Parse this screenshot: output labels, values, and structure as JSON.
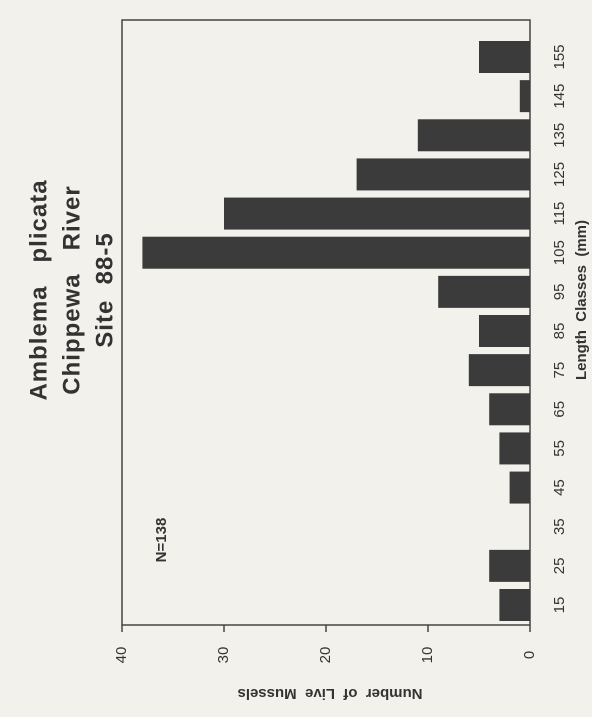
{
  "chart_data": {
    "type": "bar",
    "title_lines": [
      "Amblema   plicata",
      "Chippewa   River",
      "Site  88-5"
    ],
    "annotation": "N=138",
    "xlabel": "Length  Classes  (mm)",
    "ylabel": "Number  of  Live  Mussels",
    "categories": [
      "15",
      "25",
      "35",
      "45",
      "55",
      "65",
      "75",
      "85",
      "95",
      "105",
      "115",
      "125",
      "135",
      "145",
      "155"
    ],
    "values": [
      3,
      4,
      0,
      2,
      3,
      4,
      6,
      5,
      9,
      38,
      30,
      17,
      11,
      1,
      5
    ],
    "color": "#3b3b3b",
    "ylim": [
      0,
      40
    ],
    "yticks": [
      0,
      10,
      20,
      30,
      40
    ]
  }
}
